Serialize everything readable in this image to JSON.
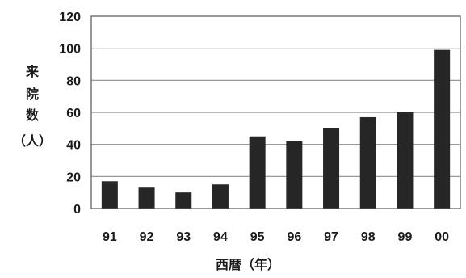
{
  "chart_data": {
    "type": "bar",
    "categories": [
      "91",
      "92",
      "93",
      "94",
      "95",
      "96",
      "97",
      "98",
      "99",
      "00"
    ],
    "values": [
      17,
      13,
      10,
      15,
      45,
      42,
      50,
      57,
      60,
      99
    ],
    "title": "",
    "xlabel": "西暦（年）",
    "ylabel_lines": [
      "来",
      "院",
      "数",
      "（人）"
    ],
    "ylim": [
      0,
      120
    ],
    "yticks": [
      "0",
      "20",
      "40",
      "60",
      "80",
      "100",
      "120"
    ],
    "grid": true,
    "bar_color": "#262626",
    "grid_color": "#8c8c8c"
  }
}
